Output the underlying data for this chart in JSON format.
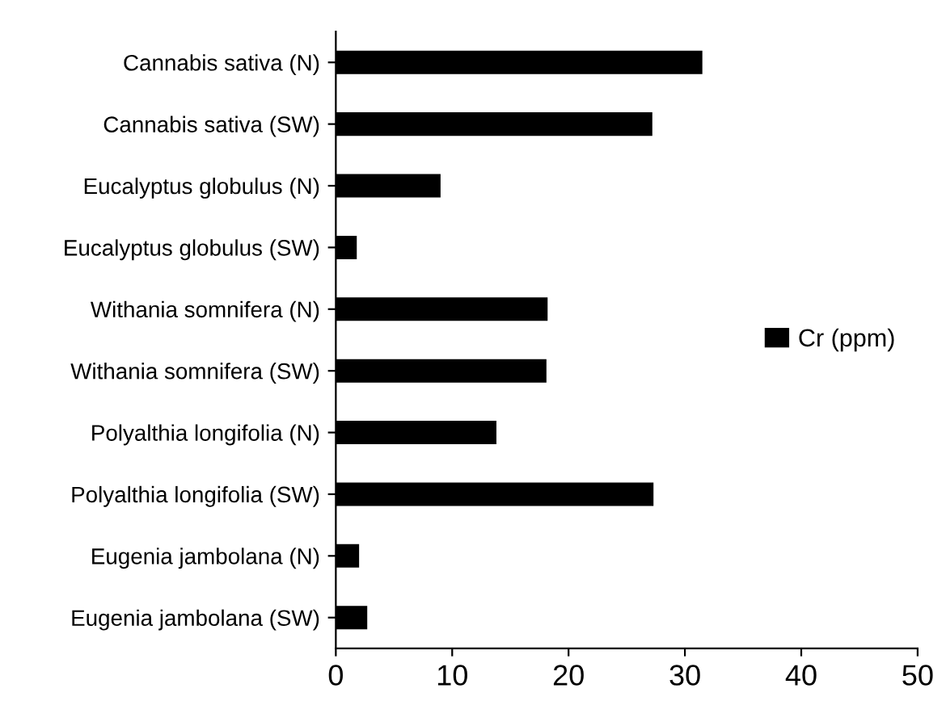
{
  "chart_data": {
    "type": "bar",
    "orientation": "horizontal",
    "categories": [
      "Cannabis sativa (N)",
      "Cannabis sativa (SW)",
      "Eucalyptus globulus (N)",
      "Eucalyptus globulus (SW)",
      "Withania somnifera (N)",
      "Withania somnifera (SW)",
      "Polyalthia longifolia (N)",
      "Polyalthia longifolia (SW)",
      "Eugenia jambolana (N)",
      "Eugenia jambolana (SW)"
    ],
    "series": [
      {
        "name": "Cr (ppm)",
        "color": "#000000",
        "values": [
          31.5,
          27.2,
          9.0,
          1.8,
          18.2,
          18.1,
          13.8,
          27.3,
          2.0,
          2.7
        ]
      }
    ],
    "xlim": [
      0,
      50
    ],
    "xticks": [
      0,
      10,
      20,
      30,
      40,
      50
    ],
    "grid": false,
    "legend": "right"
  }
}
